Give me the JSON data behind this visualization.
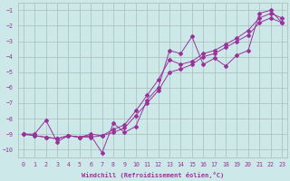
{
  "xlabel": "Windchill (Refroidissement éolien,°C)",
  "xlim": [
    -0.5,
    23.5
  ],
  "ylim": [
    -10.5,
    -0.5
  ],
  "yticks": [
    -1,
    -2,
    -3,
    -4,
    -5,
    -6,
    -7,
    -8,
    -9,
    -10
  ],
  "xticks": [
    0,
    1,
    2,
    3,
    4,
    5,
    6,
    7,
    8,
    9,
    10,
    11,
    12,
    13,
    14,
    15,
    16,
    17,
    18,
    19,
    20,
    21,
    22,
    23
  ],
  "bg_color": "#cce8e8",
  "grid_color": "#aabbbb",
  "line_color": "#993399",
  "line1_x": [
    0,
    1,
    2,
    3,
    4,
    5,
    6,
    7,
    8,
    9,
    10,
    11,
    12,
    13,
    14,
    15,
    16,
    17,
    18,
    19,
    20,
    21,
    22,
    23
  ],
  "line1_y": [
    -9.0,
    -9.0,
    -8.1,
    -9.5,
    -9.1,
    -9.2,
    -9.1,
    -10.2,
    -8.3,
    -8.9,
    -8.5,
    -6.8,
    -6.0,
    -3.6,
    -3.8,
    -2.7,
    -4.5,
    -4.1,
    -4.6,
    -3.9,
    -3.6,
    -1.2,
    -1.0,
    -1.8
  ],
  "line2_x": [
    0,
    1,
    2,
    3,
    4,
    5,
    6,
    7,
    8,
    9,
    10,
    11,
    12,
    13,
    14,
    15,
    16,
    17,
    18,
    19,
    20,
    21,
    22,
    23
  ],
  "line2_y": [
    -9.0,
    -9.1,
    -9.2,
    -9.3,
    -9.1,
    -9.2,
    -9.2,
    -9.1,
    -8.9,
    -8.6,
    -7.8,
    -7.0,
    -6.2,
    -5.0,
    -4.8,
    -4.5,
    -4.0,
    -3.8,
    -3.4,
    -3.0,
    -2.6,
    -1.8,
    -1.5,
    -1.8
  ],
  "line3_x": [
    0,
    1,
    2,
    3,
    4,
    5,
    6,
    7,
    8,
    9,
    10,
    11,
    12,
    13,
    14,
    15,
    16,
    17,
    18,
    19,
    20,
    21,
    22,
    23
  ],
  "line3_y": [
    -9.0,
    -9.1,
    -9.2,
    -9.3,
    -9.1,
    -9.2,
    -9.0,
    -9.1,
    -8.7,
    -8.4,
    -7.5,
    -6.5,
    -5.5,
    -4.2,
    -4.5,
    -4.3,
    -3.8,
    -3.6,
    -3.2,
    -2.8,
    -2.3,
    -1.5,
    -1.2,
    -1.5
  ]
}
